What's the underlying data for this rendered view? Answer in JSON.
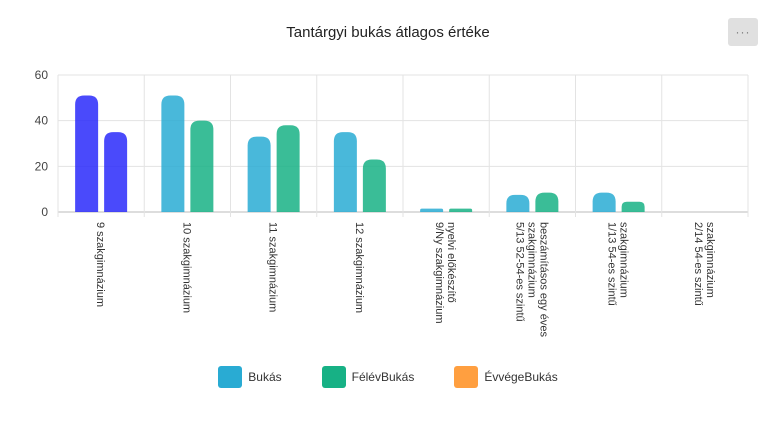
{
  "menu_label": "···",
  "chart_data": {
    "type": "bar",
    "title": "Tantárgyi bukás átlagos értéke",
    "xlabel": "",
    "ylabel": "",
    "ylim": [
      0,
      60
    ],
    "yticks": [
      0,
      20,
      40,
      60
    ],
    "grid": true,
    "legend_position": "bottom",
    "categories": [
      [
        "9 szakgimnázium"
      ],
      [
        "10 szakgimnázium"
      ],
      [
        "11 szakgimnázium"
      ],
      [
        "12 szakgimnázium"
      ],
      [
        "9/Ny szakgimnázium",
        "nyelvi előkészítő"
      ],
      [
        "5/13 52-54-es szintű",
        "szakgimnázium",
        "beszámításos egy éves"
      ],
      [
        "1/13 54-es szintű",
        "szakgimnázium"
      ],
      [
        "2/14 54-es szintű",
        "szakgimnázium"
      ]
    ],
    "series": [
      {
        "name": "Bukás",
        "color": "#29abd3",
        "values": [
          51,
          51,
          33,
          35,
          1.5,
          7.5,
          8.5,
          0
        ]
      },
      {
        "name": "FélévBukás",
        "color": "#17b185",
        "values": [
          35,
          40,
          38,
          23,
          1.5,
          8.5,
          4.5,
          0
        ]
      },
      {
        "name": "ÉvvégeBukás",
        "color": "#ff9f40",
        "values": [
          0,
          0,
          0,
          0,
          0,
          0,
          0,
          0
        ]
      }
    ],
    "highlight_color": "#2a2afa",
    "highlighted_category_index": 0
  }
}
